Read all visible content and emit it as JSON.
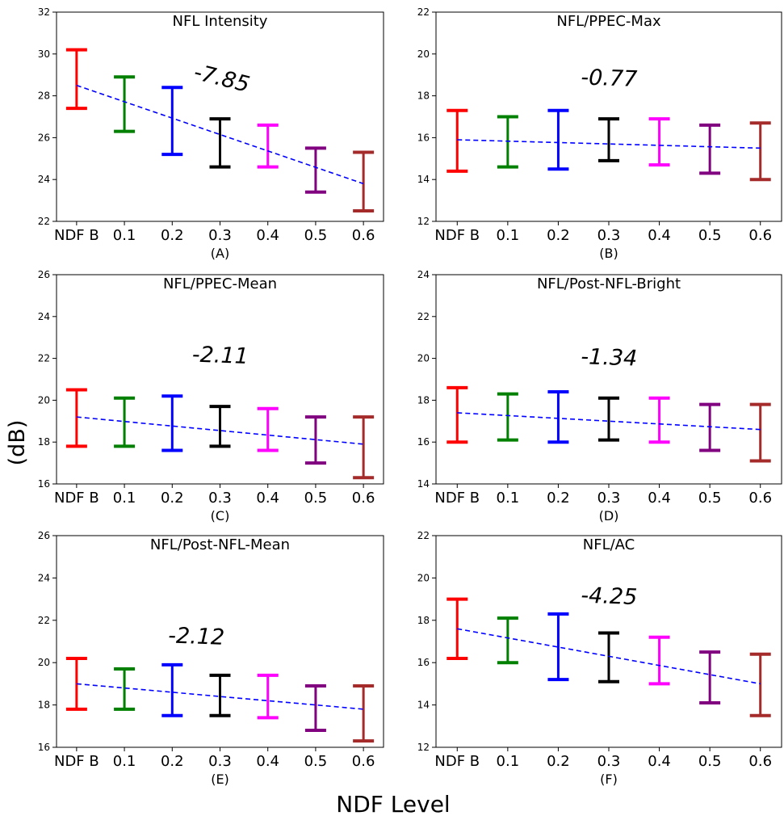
{
  "figure": {
    "ylabel": "(dB)",
    "xlabel": "NDF Level"
  },
  "colors": [
    "#ff0000",
    "#008000",
    "#0000ff",
    "#000000",
    "#ff00ff",
    "#800080",
    "#a52a2a"
  ],
  "trend_color": "#0000ff",
  "chart_data": [
    {
      "type": "errorbar",
      "title": "NFL Intensity",
      "panel_label": "(A)",
      "annotation": "-7.85",
      "categories": [
        "NDF B",
        "0.1",
        "0.2",
        "0.3",
        "0.4",
        "0.5",
        "0.6"
      ],
      "ylim": [
        22,
        32
      ],
      "yticks": [
        "22",
        "24",
        "26",
        "28",
        "30",
        "32"
      ],
      "lower": [
        27.4,
        26.3,
        25.2,
        24.6,
        24.6,
        23.4,
        22.5
      ],
      "upper": [
        30.2,
        28.9,
        28.4,
        26.9,
        26.6,
        25.5,
        25.3
      ],
      "trend": [
        28.5,
        23.8
      ]
    },
    {
      "type": "errorbar",
      "title": "NFL/PPEC-Max",
      "panel_label": "(B)",
      "annotation": "-0.77",
      "categories": [
        "NDF B",
        "0.1",
        "0.2",
        "0.3",
        "0.4",
        "0.5",
        "0.6"
      ],
      "ylim": [
        12,
        22
      ],
      "yticks": [
        "12",
        "14",
        "16",
        "18",
        "20",
        "22"
      ],
      "lower": [
        14.4,
        14.6,
        14.5,
        14.9,
        14.7,
        14.3,
        14.0
      ],
      "upper": [
        17.3,
        17.0,
        17.3,
        16.9,
        16.9,
        16.6,
        16.7
      ],
      "trend": [
        15.9,
        15.5
      ]
    },
    {
      "type": "errorbar",
      "title": "NFL/PPEC-Mean",
      "panel_label": "(C)",
      "annotation": "-2.11",
      "categories": [
        "NDF B",
        "0.1",
        "0.2",
        "0.3",
        "0.4",
        "0.5",
        "0.6"
      ],
      "ylim": [
        16,
        26
      ],
      "yticks": [
        "16",
        "18",
        "20",
        "22",
        "24",
        "26"
      ],
      "lower": [
        17.8,
        17.8,
        17.6,
        17.8,
        17.6,
        17.0,
        16.3
      ],
      "upper": [
        20.5,
        20.1,
        20.2,
        19.7,
        19.6,
        19.2,
        19.2
      ],
      "trend": [
        19.2,
        17.9
      ]
    },
    {
      "type": "errorbar",
      "title": "NFL/Post-NFL-Bright",
      "panel_label": "(D)",
      "annotation": "-1.34",
      "categories": [
        "NDF B",
        "0.1",
        "0.2",
        "0.3",
        "0.4",
        "0.5",
        "0.6"
      ],
      "ylim": [
        14,
        24
      ],
      "yticks": [
        "14",
        "16",
        "18",
        "20",
        "22",
        "24"
      ],
      "lower": [
        16.0,
        16.1,
        16.0,
        16.1,
        16.0,
        15.6,
        15.1
      ],
      "upper": [
        18.6,
        18.3,
        18.4,
        18.1,
        18.1,
        17.8,
        17.8
      ],
      "trend": [
        17.4,
        16.6
      ]
    },
    {
      "type": "errorbar",
      "title": "NFL/Post-NFL-Mean",
      "panel_label": "(E)",
      "annotation": "-2.12",
      "categories": [
        "NDF B",
        "0.1",
        "0.2",
        "0.3",
        "0.4",
        "0.5",
        "0.6"
      ],
      "ylim": [
        16,
        26
      ],
      "yticks": [
        "16",
        "18",
        "20",
        "22",
        "24",
        "26"
      ],
      "lower": [
        17.8,
        17.8,
        17.5,
        17.5,
        17.4,
        16.8,
        16.3
      ],
      "upper": [
        20.2,
        19.7,
        19.9,
        19.4,
        19.4,
        18.9,
        18.9
      ],
      "trend": [
        19.0,
        17.8
      ]
    },
    {
      "type": "errorbar",
      "title": "NFL/AC",
      "panel_label": "(F)",
      "annotation": "-4.25",
      "categories": [
        "NDF B",
        "0.1",
        "0.2",
        "0.3",
        "0.4",
        "0.5",
        "0.6"
      ],
      "ylim": [
        12,
        22
      ],
      "yticks": [
        "12",
        "14",
        "16",
        "18",
        "20",
        "22"
      ],
      "lower": [
        16.2,
        16.0,
        15.2,
        15.1,
        15.0,
        14.1,
        13.5
      ],
      "upper": [
        19.0,
        18.1,
        18.3,
        17.4,
        17.2,
        16.5,
        16.4
      ],
      "trend": [
        17.6,
        15.0
      ]
    }
  ]
}
